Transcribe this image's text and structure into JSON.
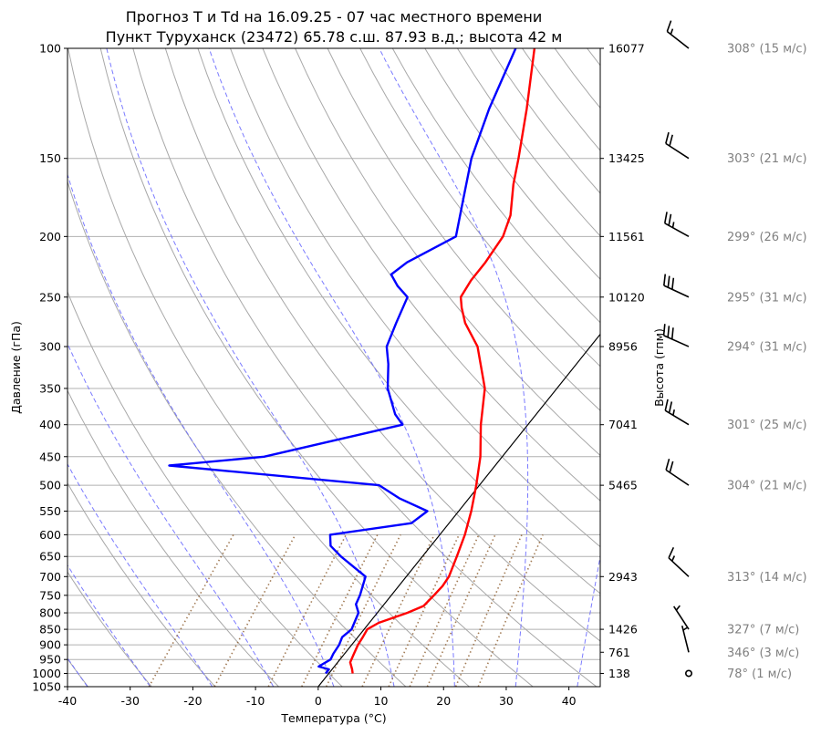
{
  "chart_data": {
    "type": "skew-t",
    "title_line1": "Прогноз T и Td на 16.09.25 - 07 час местного времени",
    "title_line2": "Пункт Туруханск (23472) 65.78 с.ш. 87.93 в.д.; высота 42 м",
    "xlabel": "Температура (°C)",
    "ylabel": "Давление (гПа)",
    "ylabel_right": "Высота (гпм)",
    "xlim": [
      -40,
      45
    ],
    "plim": [
      1050,
      100
    ],
    "x_ticks": [
      -40,
      -30,
      -20,
      -10,
      0,
      10,
      20,
      30,
      40
    ],
    "p_ticks": [
      1050,
      1000,
      950,
      900,
      850,
      800,
      750,
      700,
      650,
      600,
      550,
      500,
      450,
      400,
      350,
      300,
      250,
      200,
      150,
      100
    ],
    "height_ticks": [
      {
        "p": 1000,
        "label": "138"
      },
      {
        "p": 925,
        "label": "761"
      },
      {
        "p": 850,
        "label": "1426"
      },
      {
        "p": 700,
        "label": "2943"
      },
      {
        "p": 500,
        "label": "5465"
      },
      {
        "p": 400,
        "label": "7041"
      },
      {
        "p": 300,
        "label": "8956"
      },
      {
        "p": 250,
        "label": "10120"
      },
      {
        "p": 200,
        "label": "11561"
      },
      {
        "p": 150,
        "label": "13425"
      },
      {
        "p": 100,
        "label": "16077"
      }
    ],
    "series": [
      {
        "name": "T",
        "color": "#ff0000",
        "points": [
          [
            1000,
            3.8
          ],
          [
            985,
            3.2
          ],
          [
            960,
            2.0
          ],
          [
            930,
            1.5
          ],
          [
            900,
            1.0
          ],
          [
            875,
            0.8
          ],
          [
            850,
            0.5
          ],
          [
            830,
            1.5
          ],
          [
            800,
            4.8
          ],
          [
            780,
            6.5
          ],
          [
            750,
            6.8
          ],
          [
            725,
            7.0
          ],
          [
            700,
            6.8
          ],
          [
            650,
            5.5
          ],
          [
            600,
            4.0
          ],
          [
            550,
            2.0
          ],
          [
            500,
            -0.5
          ],
          [
            450,
            -3.5
          ],
          [
            400,
            -7.5
          ],
          [
            350,
            -11.5
          ],
          [
            300,
            -18.0
          ],
          [
            275,
            -23.0
          ],
          [
            260,
            -25.5
          ],
          [
            250,
            -27.0
          ],
          [
            235,
            -27.5
          ],
          [
            220,
            -27.5
          ],
          [
            200,
            -28.0
          ],
          [
            185,
            -29.5
          ],
          [
            165,
            -33.0
          ],
          [
            150,
            -35.5
          ],
          [
            125,
            -40.5
          ],
          [
            100,
            -47.0
          ]
        ]
      },
      {
        "name": "Td",
        "color": "#0000ff",
        "points": [
          [
            1000,
            -0.5
          ],
          [
            985,
            -0.5
          ],
          [
            975,
            -2.5
          ],
          [
            950,
            -1.5
          ],
          [
            930,
            -1.8
          ],
          [
            900,
            -2.0
          ],
          [
            875,
            -2.5
          ],
          [
            850,
            -2.0
          ],
          [
            800,
            -3.0
          ],
          [
            775,
            -4.5
          ],
          [
            750,
            -5.0
          ],
          [
            700,
            -6.5
          ],
          [
            650,
            -13.0
          ],
          [
            625,
            -16.0
          ],
          [
            600,
            -17.5
          ],
          [
            575,
            -6.0
          ],
          [
            550,
            -5.0
          ],
          [
            525,
            -11.0
          ],
          [
            500,
            -16.0
          ],
          [
            465,
            -52.0
          ],
          [
            450,
            -38.0
          ],
          [
            400,
            -20.0
          ],
          [
            385,
            -22.5
          ],
          [
            350,
            -27.0
          ],
          [
            320,
            -30.0
          ],
          [
            300,
            -32.5
          ],
          [
            275,
            -34.0
          ],
          [
            250,
            -35.5
          ],
          [
            240,
            -38.5
          ],
          [
            230,
            -41.0
          ],
          [
            220,
            -40.0
          ],
          [
            200,
            -35.5
          ],
          [
            175,
            -39.0
          ],
          [
            150,
            -43.0
          ],
          [
            125,
            -46.5
          ],
          [
            100,
            -50.0
          ]
        ]
      }
    ],
    "reference_lines": {
      "isotherm_0": {
        "color": "#000000"
      },
      "dry_adiabats": {
        "color": "#999999"
      },
      "moist_adiabats": {
        "color": "#6b6bff",
        "style": "dashed"
      },
      "mixing_ratio_lines": {
        "color": "#8b5a2b",
        "style": "dotted"
      }
    },
    "wind_profile": [
      {
        "p": 1000,
        "dir": 78,
        "speed": 1,
        "label": "78° (1 м/с)"
      },
      {
        "p": 925,
        "dir": 346,
        "speed": 3,
        "label": "346° (3 м/с)"
      },
      {
        "p": 850,
        "dir": 327,
        "speed": 7,
        "label": "327° (7 м/с)"
      },
      {
        "p": 700,
        "dir": 313,
        "speed": 14,
        "label": "313° (14 м/с)"
      },
      {
        "p": 500,
        "dir": 304,
        "speed": 21,
        "label": "304° (21 м/с)"
      },
      {
        "p": 400,
        "dir": 301,
        "speed": 25,
        "label": "301° (25 м/с)"
      },
      {
        "p": 300,
        "dir": 294,
        "speed": 31,
        "label": "294° (31 м/с)"
      },
      {
        "p": 250,
        "dir": 295,
        "speed": 31,
        "label": "295° (31 м/с)"
      },
      {
        "p": 200,
        "dir": 299,
        "speed": 26,
        "label": "299° (26 м/с)"
      },
      {
        "p": 150,
        "dir": 303,
        "speed": 21,
        "label": "303° (21 м/с)"
      },
      {
        "p": 100,
        "dir": 308,
        "speed": 15,
        "label": "308° (15 м/с)"
      }
    ]
  }
}
